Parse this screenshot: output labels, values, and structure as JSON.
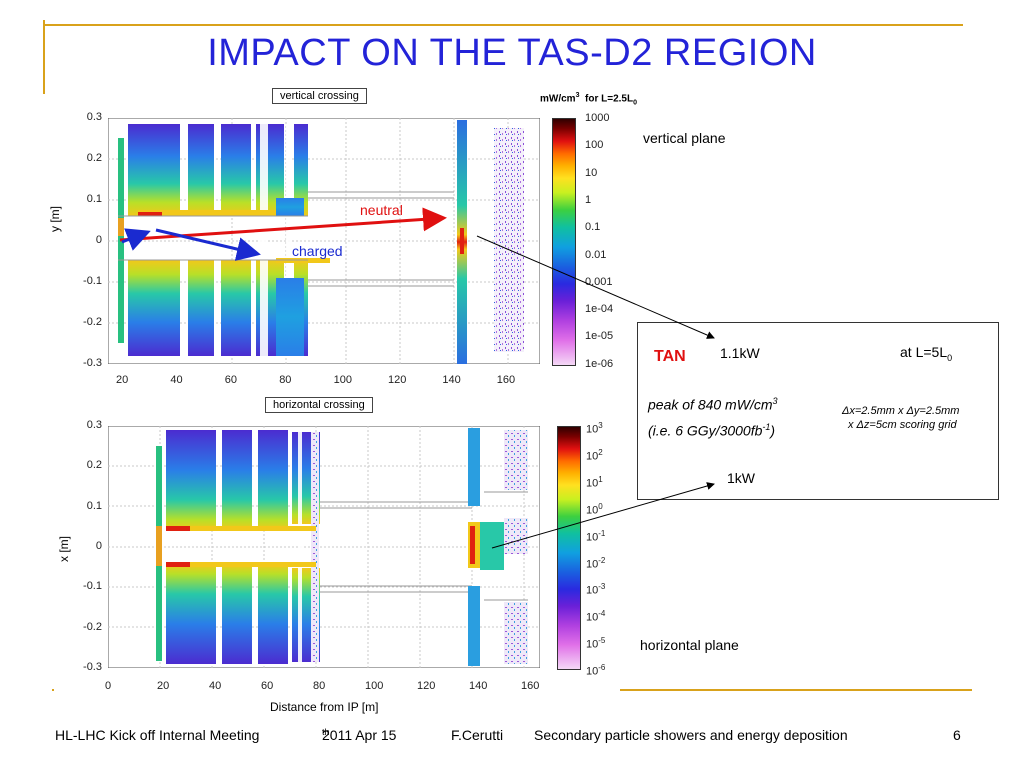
{
  "slide": {
    "title": "IMPACT ON THE TAS-D2 REGION",
    "slide_number": "6"
  },
  "plots": {
    "top": {
      "box_label": "vertical crossing",
      "ylabel": "y [m]",
      "yticks": [
        "0.3",
        "0.2",
        "0.1",
        "0",
        "-0.1",
        "-0.2",
        "-0.3"
      ],
      "xticks": [
        "20",
        "40",
        "60",
        "80",
        "100",
        "120",
        "140",
        "160"
      ],
      "arrow_neutral": "neutral",
      "arrow_charged": "charged"
    },
    "bottom": {
      "box_label": "horizontal crossing",
      "ylabel": "x [m]",
      "xlabel": "Distance from IP [m]",
      "yticks": [
        "0.3",
        "0.2",
        "0.1",
        "0",
        "-0.1",
        "-0.2",
        "-0.3"
      ],
      "xticks": [
        "0",
        "20",
        "40",
        "60",
        "80",
        "100",
        "120",
        "140",
        "160"
      ]
    }
  },
  "colorbar_top": {
    "title_main": "mW/cm",
    "title_sup": "3",
    "title_rest": "  for L=2.5L",
    "title_sub": "0",
    "labels": [
      "1000",
      "100",
      "10",
      "1",
      "0.1",
      "0.01",
      "0.001",
      "1e-04",
      "1e-05",
      "1e-06"
    ]
  },
  "colorbar_bottom": {
    "labels": [
      {
        "base": "10",
        "exp": "3"
      },
      {
        "base": "10",
        "exp": "2"
      },
      {
        "base": "10",
        "exp": "1"
      },
      {
        "base": "10",
        "exp": "0"
      },
      {
        "base": "10",
        "exp": "-1"
      },
      {
        "base": "10",
        "exp": "-2"
      },
      {
        "base": "10",
        "exp": "-3"
      },
      {
        "base": "10",
        "exp": "-4"
      },
      {
        "base": "10",
        "exp": "-5"
      },
      {
        "base": "10",
        "exp": "-6"
      }
    ]
  },
  "notes": {
    "vertical_plane": "vertical plane",
    "horizontal_plane": "horizontal plane",
    "power_1": "1.1kW",
    "power_2": "1kW"
  },
  "tan_box": {
    "tan": "TAN",
    "lumi": "at L=5L",
    "lumi_sub": "0",
    "peak_line1": "peak of 840 mW/cm",
    "peak_line1_sup": "3",
    "peak_line2": "(i.e. 6 GGy/3000fb",
    "peak_line2_sup": "-1",
    "peak_line2_end": ")",
    "grid_line1": "Δx=2.5mm x Δy=2.5mm",
    "grid_line2": "x Δz=5cm  scoring grid"
  },
  "footer": {
    "meeting": "HL-LHC Kick off Internal Meeting",
    "date": "2011 Apr 15",
    "date_sup": "th",
    "author": "F.Cerutti",
    "topic": "Secondary particle showers and energy deposition"
  },
  "colors": {
    "title": "#2323d8",
    "accent_line": "#d9a21b",
    "neutral_arrow": "#e01010",
    "charged_arrow": "#1a2ad0",
    "tan_label": "#e01010"
  }
}
